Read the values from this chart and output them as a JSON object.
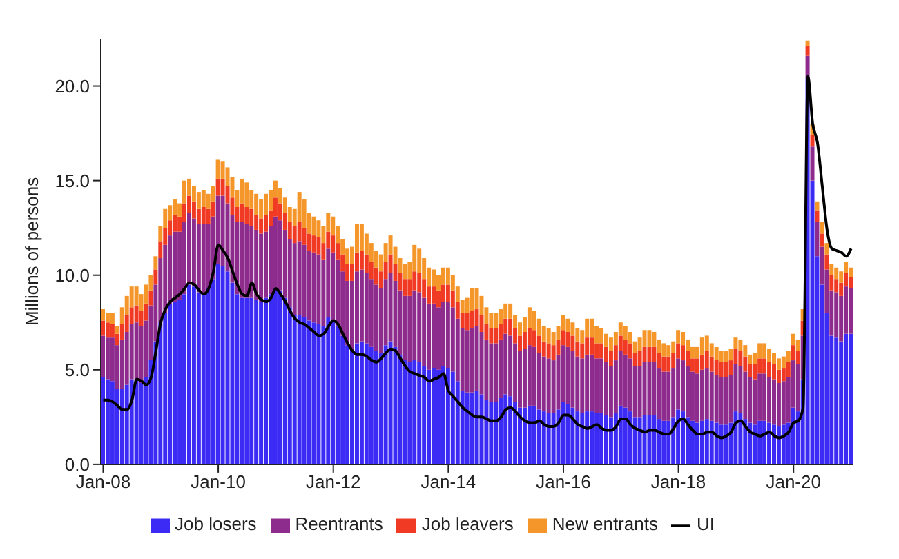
{
  "chart_data": {
    "type": "bar",
    "ylabel": "Millions of persons",
    "stacked": true,
    "legend": "bottom",
    "grid": false,
    "categories": [
      "Jan-08",
      null,
      null,
      null,
      null,
      null,
      null,
      null,
      null,
      null,
      null,
      null,
      null,
      null,
      null,
      null,
      null,
      null,
      null,
      null,
      null,
      null,
      null,
      null,
      "Jan-10",
      null,
      null,
      null,
      null,
      null,
      null,
      null,
      null,
      null,
      null,
      null,
      null,
      null,
      null,
      null,
      null,
      null,
      null,
      null,
      null,
      null,
      null,
      null,
      "Jan-12",
      null,
      null,
      null,
      null,
      null,
      null,
      null,
      null,
      null,
      null,
      null,
      null,
      null,
      null,
      null,
      null,
      null,
      null,
      null,
      null,
      null,
      null,
      null,
      "Jan-14",
      null,
      null,
      null,
      null,
      null,
      null,
      null,
      null,
      null,
      null,
      null,
      null,
      null,
      null,
      null,
      null,
      null,
      null,
      null,
      null,
      null,
      null,
      null,
      "Jan-16",
      null,
      null,
      null,
      null,
      null,
      null,
      null,
      null,
      null,
      null,
      null,
      null,
      null,
      null,
      null,
      null,
      null,
      null,
      null,
      null,
      null,
      null,
      null,
      "Jan-18",
      null,
      null,
      null,
      null,
      null,
      null,
      null,
      null,
      null,
      null,
      null,
      null,
      null,
      null,
      null,
      null,
      null,
      null,
      null,
      null,
      null,
      null,
      null,
      "Jan-20",
      null,
      null,
      null,
      null,
      null,
      null,
      null,
      null,
      null,
      null,
      null,
      null
    ],
    "ylim": [
      0,
      22.5
    ],
    "yticks": [
      {
        "value": 0,
        "label": "0.0"
      },
      {
        "value": 5,
        "label": "5.0"
      },
      {
        "value": 10,
        "label": "10.0"
      },
      {
        "value": 15,
        "label": "15.0"
      },
      {
        "value": 20,
        "label": "20.0"
      }
    ],
    "series": [
      {
        "name": "Job losers",
        "color": "#3b2bf5",
        "values": [
          4.6,
          4.5,
          4.4,
          4.0,
          4.0,
          4.2,
          4.5,
          4.5,
          4.3,
          4.6,
          5.5,
          6.5,
          7.5,
          8.0,
          8.5,
          8.6,
          8.7,
          9.0,
          9.5,
          9.4,
          9.1,
          9.0,
          9.3,
          9.8,
          10.6,
          10.5,
          10.2,
          9.6,
          9.0,
          8.8,
          8.8,
          8.8,
          8.7,
          8.6,
          8.8,
          9.0,
          9.3,
          9.2,
          8.8,
          8.3,
          7.9,
          7.9,
          7.8,
          7.6,
          7.5,
          7.4,
          7.3,
          7.8,
          7.6,
          7.3,
          6.8,
          6.3,
          6.1,
          6.4,
          6.5,
          6.4,
          6.2,
          6.0,
          5.9,
          6.3,
          6.5,
          6.2,
          5.8,
          5.5,
          5.4,
          5.5,
          5.4,
          5.2,
          5.0,
          5.1,
          5.0,
          5.2,
          5.1,
          4.9,
          4.4,
          3.9,
          3.8,
          3.8,
          3.9,
          3.7,
          3.4,
          3.3,
          3.3,
          3.5,
          3.7,
          3.6,
          3.3,
          3.0,
          3.0,
          3.1,
          3.1,
          2.9,
          2.8,
          2.7,
          2.7,
          2.9,
          3.3,
          3.2,
          3.0,
          2.8,
          2.7,
          2.8,
          2.8,
          2.7,
          2.7,
          2.6,
          2.5,
          2.7,
          3.1,
          3.0,
          2.8,
          2.5,
          2.5,
          2.6,
          2.6,
          2.6,
          2.4,
          2.3,
          2.3,
          2.5,
          2.9,
          2.8,
          2.5,
          2.3,
          2.2,
          2.3,
          2.4,
          2.3,
          2.2,
          2.1,
          2.1,
          2.2,
          2.8,
          2.7,
          2.4,
          2.2,
          2.1,
          2.3,
          2.3,
          2.2,
          2.1,
          2.0,
          2.1,
          2.2,
          3.0,
          2.8,
          4.5,
          20.4,
          15.0,
          11.0,
          9.5,
          8.0,
          6.8,
          6.7,
          6.5,
          6.9,
          6.9
        ]
      },
      {
        "name": "Reentrants",
        "color": "#8e2c8e",
        "values": [
          2.2,
          2.2,
          2.3,
          2.3,
          2.6,
          2.8,
          2.9,
          3.0,
          3.0,
          3.0,
          2.9,
          3.0,
          3.4,
          3.6,
          3.6,
          3.7,
          3.6,
          3.8,
          3.8,
          3.6,
          3.6,
          3.7,
          3.4,
          3.3,
          3.6,
          3.7,
          3.6,
          3.6,
          3.8,
          4.0,
          3.9,
          3.8,
          3.7,
          3.6,
          3.5,
          3.6,
          3.8,
          3.7,
          3.6,
          3.6,
          3.8,
          3.9,
          3.8,
          3.7,
          3.7,
          3.7,
          3.5,
          3.6,
          3.6,
          3.5,
          3.4,
          3.4,
          3.6,
          3.8,
          3.8,
          3.7,
          3.6,
          3.5,
          3.4,
          3.5,
          3.6,
          3.5,
          3.4,
          3.4,
          3.5,
          3.7,
          3.7,
          3.6,
          3.5,
          3.4,
          3.3,
          3.4,
          3.5,
          3.4,
          3.3,
          3.3,
          3.3,
          3.4,
          3.4,
          3.3,
          3.2,
          3.1,
          3.1,
          3.1,
          3.2,
          3.2,
          3.1,
          3.0,
          3.1,
          3.2,
          3.1,
          3.0,
          2.9,
          2.9,
          2.8,
          2.9,
          3.0,
          3.0,
          3.0,
          2.9,
          2.9,
          3.0,
          3.0,
          2.9,
          2.9,
          2.8,
          2.7,
          2.8,
          2.9,
          2.8,
          2.8,
          2.7,
          2.7,
          2.8,
          2.8,
          2.8,
          2.7,
          2.6,
          2.6,
          2.6,
          2.7,
          2.7,
          2.7,
          2.6,
          2.6,
          2.7,
          2.7,
          2.6,
          2.5,
          2.5,
          2.5,
          2.5,
          2.5,
          2.5,
          2.5,
          2.4,
          2.4,
          2.5,
          2.5,
          2.4,
          2.4,
          2.3,
          2.3,
          2.4,
          2.5,
          2.5,
          2.3,
          1.2,
          1.8,
          1.8,
          2.0,
          2.3,
          2.4,
          2.4,
          2.4,
          2.5,
          2.4
        ]
      },
      {
        "name": "Job leavers",
        "color": "#f03a24",
        "values": [
          0.8,
          0.8,
          0.7,
          0.6,
          0.8,
          0.9,
          0.9,
          0.9,
          0.8,
          0.9,
          0.8,
          0.8,
          0.9,
          0.9,
          0.8,
          0.9,
          0.8,
          1.0,
          0.9,
          0.9,
          0.8,
          0.9,
          0.8,
          0.8,
          0.9,
          0.9,
          0.9,
          0.9,
          0.8,
          1.0,
          0.9,
          0.9,
          0.8,
          0.8,
          0.9,
          0.8,
          1.0,
          0.9,
          0.9,
          0.9,
          0.9,
          1.0,
          0.9,
          0.9,
          0.9,
          0.9,
          0.9,
          0.9,
          0.9,
          0.9,
          0.9,
          0.9,
          0.9,
          1.0,
          1.0,
          1.0,
          0.9,
          0.9,
          0.9,
          0.9,
          1.0,
          0.9,
          0.9,
          0.9,
          0.9,
          1.0,
          1.0,
          1.0,
          0.9,
          0.9,
          0.9,
          0.9,
          0.9,
          0.9,
          0.9,
          0.8,
          0.9,
          0.9,
          0.9,
          0.9,
          0.8,
          0.8,
          0.8,
          0.8,
          0.8,
          0.9,
          0.8,
          0.8,
          0.9,
          0.9,
          0.9,
          0.9,
          0.8,
          0.8,
          0.8,
          0.8,
          0.8,
          0.8,
          0.8,
          0.8,
          0.8,
          0.9,
          0.9,
          0.8,
          0.8,
          0.8,
          0.8,
          0.8,
          0.8,
          0.8,
          0.8,
          0.7,
          0.8,
          0.8,
          0.8,
          0.8,
          0.8,
          0.8,
          0.8,
          0.8,
          0.8,
          0.8,
          0.8,
          0.7,
          0.8,
          0.8,
          0.9,
          0.8,
          0.8,
          0.8,
          0.8,
          0.8,
          0.8,
          0.8,
          0.8,
          0.7,
          0.8,
          0.8,
          0.8,
          0.8,
          0.8,
          0.7,
          0.7,
          0.8,
          0.8,
          0.7,
          0.8,
          0.5,
          0.6,
          0.6,
          0.7,
          0.8,
          0.8,
          0.7,
          0.7,
          0.7,
          0.6
        ]
      },
      {
        "name": "New entrants",
        "color": "#f5962a",
        "values": [
          0.6,
          0.5,
          0.6,
          0.4,
          0.9,
          1.0,
          1.1,
          1.0,
          0.9,
          1.0,
          0.8,
          0.7,
          0.8,
          1.0,
          0.8,
          0.8,
          0.7,
          1.2,
          0.9,
          0.8,
          0.9,
          0.9,
          0.8,
          0.8,
          1.0,
          0.9,
          1.0,
          1.1,
          0.9,
          1.3,
          1.3,
          1.0,
          1.1,
          1.0,
          1.1,
          1.1,
          0.9,
          0.8,
          0.8,
          0.8,
          0.9,
          1.6,
          1.5,
          1.1,
          1.0,
          0.9,
          0.9,
          1.0,
          1.0,
          0.9,
          0.8,
          0.8,
          0.9,
          1.5,
          1.4,
          1.1,
          1.0,
          0.9,
          0.9,
          1.0,
          1.0,
          0.9,
          0.8,
          0.8,
          0.9,
          1.4,
          1.3,
          1.1,
          1.0,
          0.9,
          0.8,
          0.9,
          0.9,
          0.8,
          0.8,
          0.7,
          0.8,
          1.2,
          1.1,
          1.0,
          0.9,
          0.8,
          0.8,
          0.8,
          0.8,
          0.8,
          0.7,
          0.7,
          0.8,
          1.1,
          1.0,
          0.9,
          0.8,
          0.8,
          0.7,
          0.7,
          0.8,
          0.7,
          0.7,
          0.7,
          0.7,
          1.0,
          1.0,
          0.9,
          0.8,
          0.7,
          0.7,
          0.7,
          0.7,
          0.7,
          0.6,
          0.6,
          0.7,
          0.9,
          0.9,
          0.8,
          0.7,
          0.7,
          0.6,
          0.6,
          0.7,
          0.7,
          0.6,
          0.6,
          0.6,
          0.9,
          0.8,
          0.7,
          0.7,
          0.6,
          0.6,
          0.6,
          0.6,
          0.6,
          0.6,
          0.5,
          0.6,
          0.8,
          0.8,
          0.7,
          0.6,
          0.6,
          0.6,
          0.6,
          0.6,
          0.6,
          0.6,
          0.3,
          0.6,
          0.5,
          0.6,
          0.6,
          0.6,
          0.6,
          0.6,
          0.6,
          0.5
        ]
      },
      {
        "name": "UI",
        "type": "line",
        "color": "#000000",
        "values": [
          3.4,
          3.4,
          3.3,
          3.1,
          2.9,
          2.9,
          3.4,
          4.5,
          4.4,
          4.2,
          4.6,
          6.0,
          7.5,
          8.2,
          8.6,
          8.8,
          9.0,
          9.3,
          9.6,
          9.5,
          9.2,
          9.0,
          9.3,
          10.2,
          11.6,
          11.3,
          10.9,
          10.2,
          9.5,
          9.0,
          8.9,
          9.6,
          9.0,
          8.7,
          8.6,
          8.8,
          9.3,
          9.0,
          8.6,
          8.1,
          7.7,
          7.5,
          7.4,
          7.2,
          7.0,
          6.8,
          6.9,
          7.3,
          7.6,
          7.4,
          6.9,
          6.4,
          6.0,
          5.8,
          5.8,
          5.7,
          5.5,
          5.4,
          5.6,
          5.9,
          6.1,
          6.0,
          5.6,
          5.2,
          4.9,
          4.8,
          4.7,
          4.6,
          4.4,
          4.5,
          4.6,
          4.8,
          3.9,
          3.6,
          3.3,
          3.0,
          2.8,
          2.6,
          2.5,
          2.5,
          2.4,
          2.3,
          2.3,
          2.5,
          2.9,
          3.0,
          2.8,
          2.5,
          2.3,
          2.2,
          2.2,
          2.3,
          2.1,
          2.0,
          2.0,
          2.2,
          2.6,
          2.6,
          2.4,
          2.1,
          2.0,
          1.9,
          2.0,
          2.1,
          1.9,
          1.8,
          1.8,
          2.0,
          2.4,
          2.4,
          2.1,
          1.9,
          1.8,
          1.7,
          1.8,
          1.8,
          1.7,
          1.6,
          1.6,
          1.9,
          2.3,
          2.4,
          2.1,
          1.8,
          1.6,
          1.6,
          1.7,
          1.7,
          1.5,
          1.4,
          1.5,
          1.7,
          2.2,
          2.3,
          2.0,
          1.7,
          1.6,
          1.5,
          1.6,
          1.7,
          1.5,
          1.4,
          1.5,
          1.7,
          2.2,
          2.3,
          3.0,
          20.5,
          18.0,
          17.0,
          14.7,
          12.4,
          11.4,
          11.3,
          11.2,
          11.0,
          11.4
        ]
      }
    ]
  }
}
